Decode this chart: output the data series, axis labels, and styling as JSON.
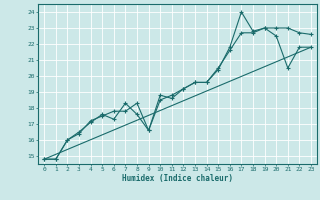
{
  "xlabel": "Humidex (Indice chaleur)",
  "bg_color": "#cce8e8",
  "grid_color": "#ffffff",
  "line_color": "#1a6b6b",
  "xlim": [
    -0.5,
    23.5
  ],
  "ylim": [
    14.5,
    24.5
  ],
  "xtick_labels": [
    "0",
    "1",
    "2",
    "3",
    "4",
    "5",
    "6",
    "7",
    "8",
    "9",
    "10",
    "11",
    "12",
    "13",
    "14",
    "15",
    "16",
    "17",
    "18",
    "19",
    "20",
    "21",
    "22",
    "23"
  ],
  "ytick_labels": [
    "15",
    "16",
    "17",
    "18",
    "19",
    "20",
    "21",
    "22",
    "23",
    "24"
  ],
  "line1_x": [
    0,
    1,
    2,
    3,
    4,
    5,
    6,
    7,
    8,
    9,
    10,
    11,
    12,
    13,
    14,
    15,
    16,
    17,
    18,
    19,
    20,
    21,
    22,
    23
  ],
  "line1_y": [
    14.8,
    14.8,
    16.0,
    16.4,
    17.2,
    17.5,
    17.8,
    17.8,
    18.3,
    16.6,
    18.5,
    18.8,
    19.2,
    19.6,
    19.6,
    20.4,
    21.8,
    24.0,
    22.8,
    23.0,
    23.0,
    23.0,
    22.7,
    22.6
  ],
  "line2_x": [
    0,
    1,
    2,
    3,
    4,
    5,
    6,
    7,
    8,
    9,
    10,
    11,
    12,
    13,
    14,
    15,
    16,
    17,
    18,
    19,
    20,
    21,
    22,
    23
  ],
  "line2_y": [
    14.8,
    14.8,
    16.0,
    16.5,
    17.1,
    17.6,
    17.3,
    18.3,
    17.6,
    16.6,
    18.8,
    18.6,
    19.2,
    19.6,
    19.6,
    20.5,
    21.6,
    22.7,
    22.7,
    23.0,
    22.5,
    20.5,
    21.8,
    21.8
  ],
  "line3_x": [
    0,
    23
  ],
  "line3_y": [
    14.8,
    21.8
  ]
}
